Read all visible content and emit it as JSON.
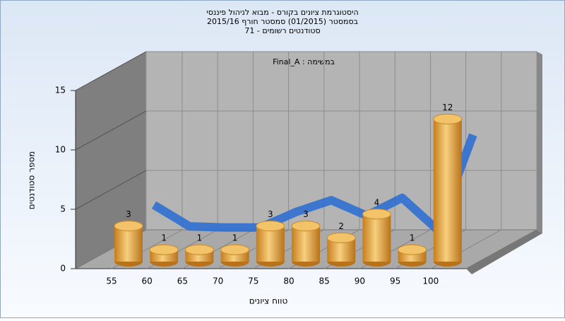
{
  "chart_data": {
    "type": "bar",
    "title": [
      "היסטוגרמת ציונים בקורס - מבוא לניהול פיננסי",
      "בסמסטר  (01/2015)  סמסטר חורף 2015/16",
      "סטודנטים רשומים - 71"
    ],
    "annotation": "Final_A : במשימה",
    "x_label": "טווח ציונים",
    "y_label": "מספר סטודנטים",
    "categories": [
      "55",
      "60",
      "65",
      "70",
      "75",
      "80",
      "85",
      "90",
      "95",
      "100"
    ],
    "values": [
      3,
      1,
      1,
      1,
      3,
      3,
      2,
      4,
      1,
      12
    ],
    "color": "#e8a440",
    "trend": {
      "color": "#2f6fd0",
      "values": [
        3.4,
        1.6,
        1.5,
        1.5,
        2.8,
        3.8,
        2.5,
        4,
        1.3,
        9.3
      ]
    },
    "ylim": [
      0,
      15
    ],
    "yticks": [
      0,
      5,
      10,
      15
    ],
    "grid": true
  }
}
